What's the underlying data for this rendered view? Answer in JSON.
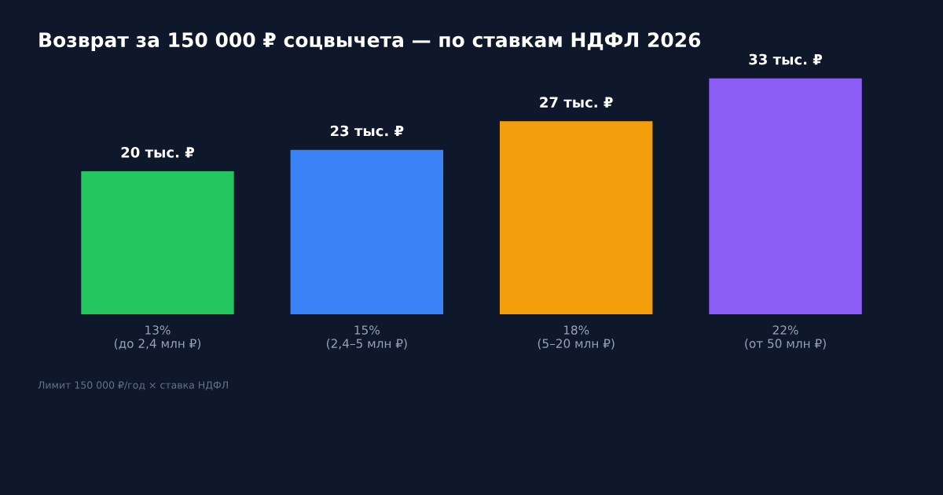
{
  "chart_data": {
    "type": "bar",
    "title": "Возврат за 150 000 ₽ соцвычета — по ставкам НДФЛ 2026",
    "categories": [
      "13%\n(до 2,4 млн ₽)",
      "15%\n(2,4–5 млн ₽)",
      "18%\n(5–20 млн ₽)",
      "22%\n(от 50 млн ₽)"
    ],
    "values": [
      20,
      23,
      27,
      33
    ],
    "value_labels": [
      "20 тыс. ₽",
      "23 тыс. ₽",
      "27 тыс. ₽",
      "33 тыс. ₽"
    ],
    "colors": [
      "#22c55e",
      "#3b82f6",
      "#f59e0b",
      "#8b5cf6"
    ],
    "tick_labels": "x",
    "grid": false,
    "legend": false,
    "annotations": [
      "Лимит 150 000 ₽/год × ставка НДФЛ"
    ]
  }
}
